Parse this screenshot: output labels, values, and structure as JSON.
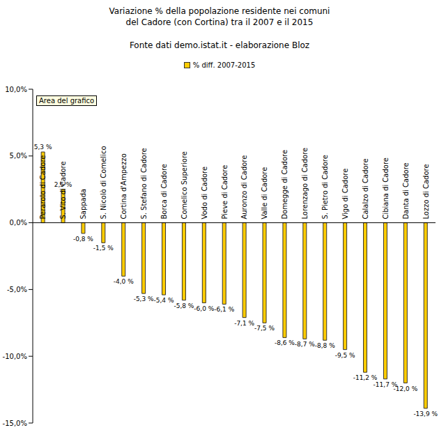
{
  "chart_data": {
    "type": "bar",
    "title": "Variazione % della popolazione residente nei comuni del Cadore (con Cortina) tra il 2007 e il 2015",
    "subtitle": "Fonte dati demo.istat.it - elaborazione Bloz",
    "annotations": [
      "Area del grafico"
    ],
    "categories": [
      "Perarolo di Cadore",
      "S. Vito di Cadore",
      "Sappada",
      "S. Nicolò di Comelico",
      "Cortina d'Ampezzo",
      "S. Stefano di Cadore",
      "Borca di Cadore",
      "Comelico Superiore",
      "Vodo di Cadore",
      "Pieve di Cadore",
      "Auronzo di Cadore",
      "Valle di Cadore",
      "Domegge di Cadore",
      "Lorenzago di Cadore",
      "S. Pietro di Cadore",
      "Vigo di Cadore",
      "Calalzo di Cadore",
      "Cibiana di Cadore",
      "Danta di Cadore",
      "Lozzo di Cadore"
    ],
    "series": [
      {
        "name": "% diff. 2007-2015",
        "color": "#ffcc00",
        "values": [
          5.3,
          2.5,
          -0.8,
          -1.5,
          -4.0,
          -5.3,
          -5.4,
          -5.8,
          -6.0,
          -6.1,
          -7.1,
          -7.5,
          -8.6,
          -8.7,
          -8.8,
          -9.5,
          -11.2,
          -11.7,
          -12.0,
          -13.9
        ],
        "value_labels": [
          "5,3 %",
          "2,5 %",
          "-0,8 %",
          "-1,5 %",
          "-4,0 %",
          "-5,3 %",
          "-5,4 %",
          "-5,8 %",
          "-6,0 %",
          "-6,1 %",
          "-7,1 %",
          "-7,5 %",
          "-8,6 %",
          "-8,7 %",
          "-8,8 %",
          "-9,5 %",
          "-11,2 %",
          "-11,7 %",
          "-12,0 %",
          "-13,9 %"
        ]
      }
    ],
    "ylim": [
      -15,
      10
    ],
    "yticks": [
      {
        "value": -15,
        "label": "-15,0%"
      },
      {
        "value": -10,
        "label": "-10,0%"
      },
      {
        "value": -5,
        "label": "-5,0%"
      },
      {
        "value": 0,
        "label": "0,0%"
      },
      {
        "value": 5,
        "label": "5,0%"
      },
      {
        "value": 10,
        "label": "10,0%"
      }
    ],
    "grid": false,
    "legend": "top",
    "data_labels": true
  }
}
